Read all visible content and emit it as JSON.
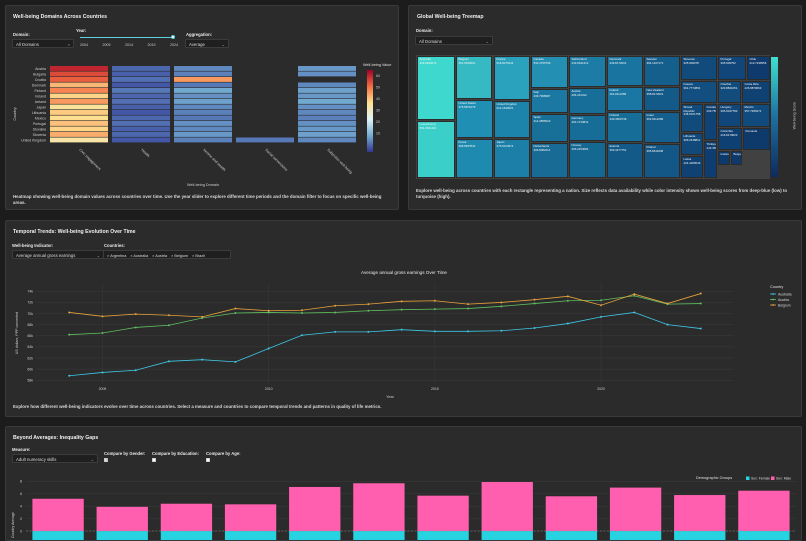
{
  "heatmap_panel": {
    "title": "Well-being Domains Across Countries",
    "domain_label": "Domain:",
    "domain_value": "All Domains",
    "year_label": "Year:",
    "year_ticks": [
      "2004",
      "2009",
      "2014",
      "2019",
      "2024"
    ],
    "aggregation_label": "Aggregation:",
    "aggregation_value": "Average",
    "caption": "Heatmap showing well-being domain values across countries over time. Use the year slider to explore different time periods and the domain filter to focus on specific well-being areas.",
    "chart_data": {
      "type": "heatmap",
      "ylabel": "Country",
      "xlabel": "Well-being Domain",
      "colorbar_title": "Well-being Value",
      "colorbar_ticks": [
        "60",
        "50",
        "40",
        "30",
        "20",
        "10"
      ],
      "countries": [
        "Austria",
        "Bulgaria",
        "Croatia",
        "Denmark",
        "Finland",
        "Ireland",
        "Iceland",
        "Japan",
        "Lithuania",
        "Mexico",
        "Portugal",
        "Slovakia",
        "Slovenia",
        "United Kingdom"
      ],
      "domains": [
        "Civic engagement",
        "Health",
        "Income and wealth",
        "Social connections",
        "Subjective well-being"
      ],
      "values": [
        [
          62,
          14,
          18,
          null,
          20
        ],
        [
          58,
          13,
          17,
          null,
          19
        ],
        [
          56,
          15,
          50,
          null,
          null
        ],
        [
          47,
          12,
          16,
          null,
          18
        ],
        [
          52,
          16,
          22,
          null,
          21
        ],
        [
          44,
          14,
          19,
          null,
          20
        ],
        [
          50,
          15,
          21,
          null,
          22
        ],
        [
          42,
          13,
          18,
          null,
          19
        ],
        [
          45,
          12,
          17,
          null,
          18
        ],
        [
          43,
          14,
          16,
          null,
          17
        ],
        [
          46,
          15,
          19,
          null,
          19
        ],
        [
          44,
          13,
          18,
          null,
          20
        ],
        [
          48,
          14,
          20,
          null,
          21
        ],
        [
          41,
          12,
          17,
          16,
          18
        ]
      ]
    }
  },
  "treemap_panel": {
    "title": "Global Well-being Treemap",
    "domain_label": "Domain:",
    "domain_value": "All Domains",
    "caption": "Explore well-being across countries with each rectangle representing a nation. Size reflects data availability while color intensity shows well-being scores from deep-blue (low) to turquoise (high).",
    "colorbar_title": "Well-being Score",
    "cells": [
      {
        "name": "Australia",
        "value": "443.9290076"
      },
      {
        "name": "Luxembourg",
        "value": "501.2521404"
      },
      {
        "name": "Belgium",
        "value": "461.6659001"
      },
      {
        "name": "United States",
        "value": "375.5871079"
      },
      {
        "name": "Korea",
        "value": "398.8937844"
      },
      {
        "name": "France",
        "value": "618.8076444"
      },
      {
        "name": "United Kingdom",
        "value": "612.1640001"
      },
      {
        "name": "Japan",
        "value": "375.6014574"
      },
      {
        "name": "Canada",
        "value": "532.4755799"
      },
      {
        "name": "Italy",
        "value": "436.7968987"
      },
      {
        "name": "Spain",
        "value": "414.2855023"
      },
      {
        "name": "Netherlands",
        "value": "406.8082214"
      },
      {
        "name": "Switzerland",
        "value": "443.6341412"
      },
      {
        "name": "Austria",
        "value": "406.431312"
      },
      {
        "name": "Germany",
        "value": "401.1743841"
      },
      {
        "name": "Norway",
        "value": "406.2453684"
      },
      {
        "name": "Denmark",
        "value": "449.8172001"
      },
      {
        "name": "Ireland",
        "value": "461.8112289"
      },
      {
        "name": "Finland",
        "value": "443.3609748"
      },
      {
        "name": "Sweden",
        "value": "394.1407171"
      },
      {
        "name": "New Zealand",
        "value": "358.8172001"
      },
      {
        "name": "Israel",
        "value": "392.8112289"
      },
      {
        "name": "Poland",
        "value": "365.8611838"
      },
      {
        "name": "Estonia",
        "value": "369.4277751"
      },
      {
        "name": "Slovenia",
        "value": "325.909378"
      },
      {
        "name": "Greece",
        "value": "361.7772891"
      },
      {
        "name": "Slovak Republic",
        "value": "346.5101758"
      },
      {
        "name": "Portugal",
        "value": "305.609752"
      },
      {
        "name": "Chile",
        "value": "213.7236556"
      },
      {
        "name": "Czechia",
        "value": "323.8841051"
      },
      {
        "name": "Hungary",
        "value": "305.6047783"
      },
      {
        "name": "Costa Rica",
        "value": "226.8879663"
      },
      {
        "name": "Lithuania",
        "value": "309.2438811"
      },
      {
        "name": "Latvia",
        "value": "224.4265043"
      },
      {
        "name": "Croatia",
        "value": "233.7598548"
      },
      {
        "name": "Mexico",
        "value": "357.7485274"
      },
      {
        "name": "Türkiye",
        "value": "243.4563284"
      },
      {
        "name": "Colombia",
        "value": "216.8179623"
      },
      {
        "name": "Iceland",
        "value": ""
      },
      {
        "name": "Bulgaria",
        "value": ""
      },
      {
        "name": "Romania",
        "value": ""
      }
    ]
  },
  "trends_panel": {
    "title": "Temporal Trends: Well-being Evolution Over Time",
    "indicator_label": "Well-being Indicator:",
    "indicator_value": "Average annual gross earnings",
    "countries_label": "Countries:",
    "country_chips": [
      "× Argentina",
      "× Australia",
      "× Austria",
      "× Belgium",
      "× Brazil"
    ],
    "caption": "Explore how different well-being indicators evolve over time across countries. Select a measure and countries to compare temporal trends and patterns in quality of life metrics.",
    "chart_data": {
      "type": "line",
      "title": "Average annual gross earnings Over Time",
      "xlabel": "Year",
      "ylabel": "US dollars, PPP converted",
      "xlim": [
        2003,
        2024
      ],
      "ylim": [
        57500,
        75500
      ],
      "y_ticks": [
        "58k",
        "60k",
        "62k",
        "64k",
        "66k",
        "68k",
        "70k",
        "72k",
        "74k"
      ],
      "x_ticks": [
        "2005",
        "2010",
        "2015",
        "2020"
      ],
      "legend_title": "Country",
      "legend_position": "right",
      "series": [
        {
          "name": "Australia",
          "color": "#3fc7e6",
          "x": [
            2004,
            2005,
            2006,
            2007,
            2008,
            2009,
            2010,
            2011,
            2012,
            2013,
            2014,
            2015,
            2016,
            2017,
            2018,
            2019,
            2020,
            2021,
            2022,
            2023
          ],
          "y": [
            58800,
            59400,
            59800,
            61400,
            61700,
            61300,
            63700,
            66100,
            66700,
            66700,
            67100,
            66800,
            66800,
            66900,
            67400,
            68200,
            69400,
            70200,
            68000,
            67300
          ]
        },
        {
          "name": "Austria",
          "color": "#5fbf5f",
          "x": [
            2004,
            2005,
            2006,
            2007,
            2008,
            2009,
            2010,
            2011,
            2012,
            2013,
            2014,
            2015,
            2016,
            2017,
            2018,
            2019,
            2020,
            2021,
            2022,
            2023
          ],
          "y": [
            66200,
            66500,
            67500,
            67900,
            69200,
            70100,
            70200,
            70100,
            70200,
            70500,
            70700,
            70800,
            70900,
            71300,
            71800,
            72300,
            72400,
            73200,
            71700,
            71800
          ]
        },
        {
          "name": "Belgium",
          "color": "#e8a23a",
          "x": [
            2004,
            2005,
            2006,
            2007,
            2008,
            2009,
            2010,
            2011,
            2012,
            2013,
            2014,
            2015,
            2016,
            2017,
            2018,
            2019,
            2020,
            2021,
            2022,
            2023
          ],
          "y": [
            70200,
            69500,
            69900,
            69700,
            69400,
            70900,
            70500,
            70600,
            71400,
            71700,
            72200,
            72300,
            71700,
            72000,
            72500,
            73100,
            71500,
            73500,
            71800,
            73600
          ]
        }
      ]
    }
  },
  "inequality_panel": {
    "title": "Beyond Averages: Inequality Gaps",
    "measure_label": "Measure:",
    "measure_value": "Adult numeracy skills",
    "gender_label": "Compare by Gender:",
    "education_label": "Compare by Education:",
    "age_label": "Compare by Age:",
    "gender_checked": true,
    "education_checked": false,
    "age_checked": false,
    "chart_data": {
      "type": "bar",
      "ylabel": "Country Average",
      "y_ticks": [
        "8",
        "6",
        "4",
        "2",
        "0"
      ],
      "legend_title": "Demographic Groups",
      "series": [
        {
          "name": "Sex: Female",
          "color": "#27d3e0",
          "values": [
            -0.5,
            -0.5,
            -0.5,
            -0.5,
            -0.5,
            -0.5,
            -0.5,
            -0.5,
            -0.5,
            -0.5,
            -0.5,
            -0.5
          ]
        },
        {
          "name": "Sex: Male",
          "color": "#ff5fae",
          "values": [
            5.2,
            3.9,
            4.4,
            4.3,
            7.1,
            7.7,
            5.7,
            7.9,
            5.6,
            7.0,
            5.8,
            6.5
          ]
        }
      ]
    }
  }
}
